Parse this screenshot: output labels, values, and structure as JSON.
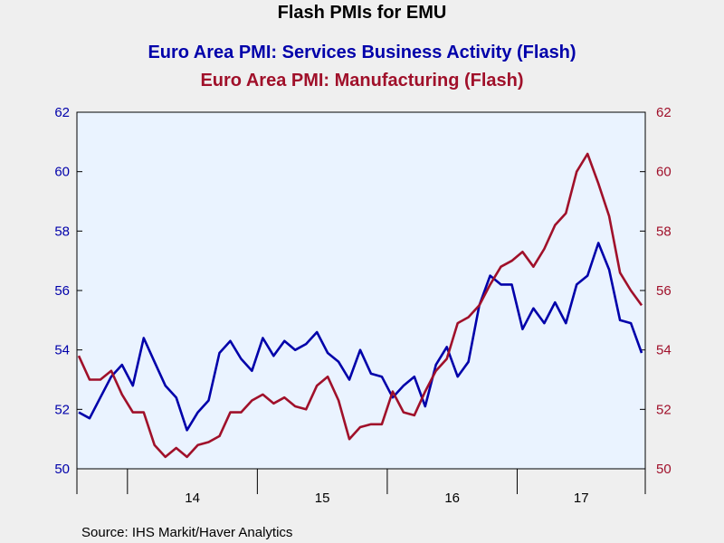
{
  "chart_data": {
    "type": "line",
    "title": "Flash PMIs for EMU",
    "x_labels": [
      "14",
      "15",
      "16",
      "17"
    ],
    "left_axis": {
      "ylim": [
        50,
        62
      ],
      "ticks": [
        "50",
        "52",
        "54",
        "56",
        "58",
        "60",
        "62"
      ],
      "color": "#0000aa"
    },
    "right_axis": {
      "ylim": [
        50,
        62
      ],
      "ticks": [
        "50",
        "52",
        "54",
        "56",
        "58",
        "60",
        "62"
      ],
      "color": "#a0102a"
    },
    "x_start": "2013-08",
    "series": [
      {
        "name": "Euro Area PMI: Services Business Activity (Flash)",
        "axis": "left",
        "color": "#0000aa",
        "values": [
          51.9,
          51.7,
          52.4,
          53.1,
          53.5,
          52.8,
          54.4,
          53.6,
          52.8,
          52.4,
          51.3,
          51.9,
          52.3,
          53.9,
          54.3,
          53.7,
          53.3,
          54.4,
          53.8,
          54.3,
          54.0,
          54.2,
          54.6,
          53.9,
          53.6,
          53.0,
          54.0,
          53.2,
          53.1,
          52.4,
          52.8,
          53.1,
          52.1,
          53.5,
          54.1,
          53.1,
          53.6,
          55.5,
          56.5,
          56.2,
          56.2,
          54.7,
          55.4,
          54.9,
          55.6,
          54.9,
          56.2,
          56.5,
          57.6,
          56.7,
          55.0,
          54.9,
          53.9
        ]
      },
      {
        "name": "Euro Area PMI: Manufacturing (Flash)",
        "axis": "right",
        "color": "#a0102a",
        "values": [
          53.8,
          53.0,
          53.0,
          53.3,
          52.5,
          51.9,
          51.9,
          50.8,
          50.4,
          50.7,
          50.4,
          50.8,
          50.9,
          51.1,
          51.9,
          51.9,
          52.3,
          52.5,
          52.2,
          52.4,
          52.1,
          52.0,
          52.8,
          53.1,
          52.3,
          51.0,
          51.4,
          51.5,
          51.5,
          52.6,
          51.9,
          51.8,
          52.6,
          53.3,
          53.7,
          54.9,
          55.1,
          55.5,
          56.2,
          56.8,
          57.0,
          57.3,
          56.8,
          57.4,
          58.2,
          58.6,
          60.0,
          60.6,
          59.6,
          58.5,
          56.6,
          56.0,
          55.5
        ]
      }
    ]
  },
  "footer": {
    "source": "Source:  IHS Markit/Haver Analytics"
  }
}
